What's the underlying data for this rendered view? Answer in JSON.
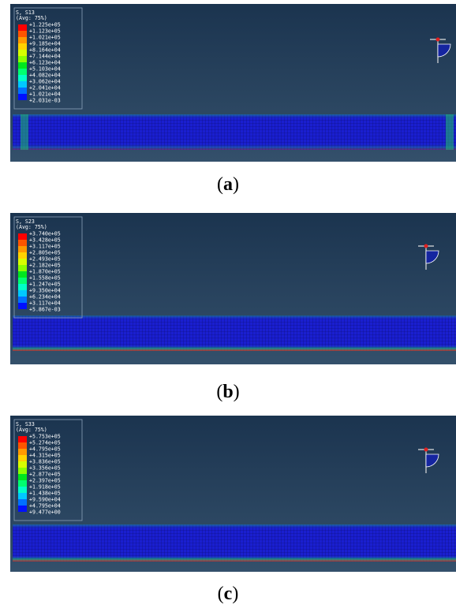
{
  "panels": [
    {
      "legend": {
        "title": "S, S13",
        "subtitle": "(Avg: 75%)",
        "values": [
          "+1.225e+05",
          "+1.123e+05",
          "+1.021e+05",
          "+9.185e+04",
          "+8.164e+04",
          "+7.144e+04",
          "+6.123e+04",
          "+5.103e+04",
          "+4.082e+04",
          "+3.062e+04",
          "+2.041e+04",
          "+1.021e+04",
          "+2.031e-03"
        ]
      },
      "caption": [
        "(",
        "a",
        ")"
      ]
    },
    {
      "legend": {
        "title": "S, S23",
        "subtitle": "(Avg: 75%)",
        "values": [
          "+3.740e+05",
          "+3.428e+05",
          "+3.117e+05",
          "+2.805e+05",
          "+2.493e+05",
          "+2.182e+05",
          "+1.870e+05",
          "+1.558e+05",
          "+1.247e+05",
          "+9.350e+04",
          "+6.234e+04",
          "+3.117e+04",
          "+5.867e-03"
        ]
      },
      "caption": [
        "(",
        "b",
        ")"
      ]
    },
    {
      "legend": {
        "title": "S, S33",
        "subtitle": "(Avg: 75%)",
        "values": [
          "+5.753e+05",
          "+5.274e+05",
          "+4.795e+05",
          "+4.315e+05",
          "+3.836e+05",
          "+3.356e+05",
          "+2.877e+05",
          "+2.397e+05",
          "+1.918e+05",
          "+1.438e+05",
          "+9.590e+04",
          "+4.795e+04",
          "+9.477e+00"
        ]
      },
      "caption": [
        "(",
        "c",
        ")"
      ]
    }
  ]
}
